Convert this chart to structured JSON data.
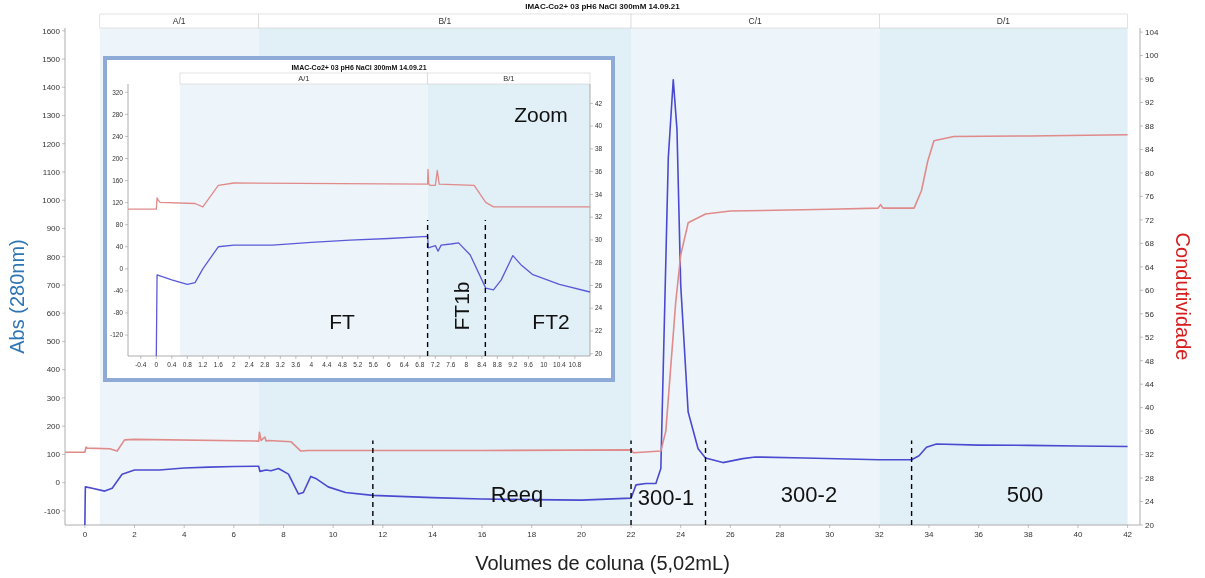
{
  "chart_data": [
    {
      "type": "line",
      "title": "IMAC-Co2+ 03 pH6 NaCl 300mM 14.09.21",
      "xlabel": "Volumes de coluna (5,02mL)",
      "ylabel": "Abs (280nm)",
      "y2label": "Condutividade",
      "xlim": [
        -0.8,
        42.5
      ],
      "xticks": [
        0,
        2,
        4,
        6,
        8,
        10,
        12,
        14,
        16,
        18,
        20,
        22,
        24,
        26,
        28,
        30,
        32,
        34,
        36,
        38,
        40,
        42
      ],
      "ylim": [
        -150,
        1610
      ],
      "yticks": [
        -100,
        0,
        100,
        200,
        300,
        400,
        500,
        600,
        700,
        800,
        900,
        1000,
        1100,
        1200,
        1300,
        1400,
        1500,
        1600
      ],
      "y2lim": [
        20,
        104.7
      ],
      "y2ticks": [
        20,
        24,
        28,
        32,
        36,
        40,
        44,
        48,
        52,
        56,
        60,
        64,
        68,
        72,
        76,
        80,
        84,
        88,
        92,
        96,
        100,
        104
      ],
      "series": [
        {
          "color": "#4a4ad0",
          "x": [
            0,
            0.02,
            0.3,
            0.8,
            1.1,
            1.5,
            2,
            3,
            4,
            5,
            6,
            7,
            7.05,
            7.3,
            7.5,
            7.8,
            8.2,
            8.6,
            8.8,
            9.1,
            9.3,
            9.8,
            10.5,
            11.6,
            14,
            16,
            18,
            20,
            22,
            22.2,
            22.6,
            23.0,
            23.2,
            23.35,
            23.5,
            23.7,
            23.85,
            24,
            24.3,
            24.7,
            25,
            25.7,
            26.5,
            27,
            29,
            32,
            33.3,
            33.6,
            33.9,
            34.3,
            36,
            38,
            40,
            42
          ],
          "values": [
            -150,
            -15,
            -20,
            -30,
            -20,
            30,
            45,
            45,
            52,
            55,
            57,
            58,
            40,
            45,
            42,
            50,
            30,
            -40,
            -35,
            22,
            15,
            -15,
            -35,
            -45,
            -53,
            -58,
            -60,
            -62,
            -55,
            -8,
            -3,
            -3,
            50,
            600,
            1150,
            1427,
            1250,
            700,
            250,
            120,
            87,
            71,
            85,
            91,
            87,
            81,
            81,
            95,
            125,
            137,
            133,
            132,
            130,
            128
          ]
        },
        {
          "color": "#e08a8a",
          "axis": "y2",
          "x": [
            -0.8,
            0,
            0.05,
            0.1,
            1.0,
            1.3,
            1.6,
            2,
            7,
            7.03,
            7.1,
            7.25,
            7.3,
            7.4,
            8.3,
            8.7,
            9,
            12,
            16,
            22,
            22.1,
            23.2,
            23.4,
            23.6,
            23.8,
            24,
            24.3,
            25,
            26,
            30,
            31.95,
            32.05,
            32.15,
            33.4,
            33.7,
            33.95,
            34.2,
            35,
            38,
            42
          ],
          "values": [
            32.4,
            32.4,
            33.3,
            33.1,
            33.0,
            32.6,
            34.5,
            34.6,
            34.3,
            35.8,
            34.4,
            35.0,
            34.3,
            34.4,
            34.2,
            32.6,
            32.7,
            32.7,
            32.7,
            32.8,
            32.3,
            32.6,
            36,
            47,
            58,
            66,
            71.5,
            73,
            73.5,
            73.8,
            74,
            74.6,
            74,
            74,
            77,
            82,
            85.5,
            86.2,
            86.3,
            86.5
          ]
        }
      ],
      "bands": [
        {
          "axis": "x",
          "from": 0.6,
          "to": 7,
          "label": "A/1",
          "color": "#eef5fa"
        },
        {
          "axis": "x",
          "from": 7,
          "to": 22,
          "label": "B/1",
          "color": "#e1eff6"
        },
        {
          "axis": "x",
          "from": 22,
          "to": 32,
          "label": "C/1",
          "color": "#eef5fa"
        },
        {
          "axis": "x",
          "from": 32,
          "to": 42,
          "label": "D/1",
          "color": "#e1eff6"
        }
      ],
      "ref_lines": [
        {
          "axis": "x",
          "value": 11.6,
          "line_style": "dashed",
          "color": "#000000"
        },
        {
          "axis": "x",
          "value": 22,
          "line_style": "dashed",
          "color": "#000000"
        },
        {
          "axis": "x",
          "value": 25,
          "line_style": "dashed",
          "color": "#000000"
        },
        {
          "axis": "x",
          "value": 33.3,
          "line_style": "dashed",
          "color": "#000000"
        }
      ],
      "annotations": [
        "Reeq",
        "300-1",
        "300-2",
        "500"
      ]
    },
    {
      "type": "line",
      "title": "IMAC-Co2+ 03 pH6 NaCl 300mM 14.09.21",
      "xlim": [
        -0.73,
        11.19
      ],
      "xticks": [
        -0.4,
        0,
        0.4,
        0.8,
        1.2,
        1.6,
        2,
        2.4,
        2.8,
        3.2,
        3.6,
        4,
        4.4,
        4.8,
        5.2,
        5.6,
        6,
        6.4,
        6.8,
        7.2,
        7.6,
        8,
        8.4,
        8.8,
        9.2,
        9.6,
        10,
        10.4,
        10.8
      ],
      "ylim": [
        -158,
        335
      ],
      "yticks": [
        -120,
        -80,
        -40,
        0,
        40,
        80,
        120,
        160,
        200,
        240,
        280,
        320
      ],
      "y2lim": [
        19.8,
        43.7
      ],
      "y2ticks": [
        20,
        22,
        24,
        26,
        28,
        30,
        32,
        34,
        36,
        38,
        40,
        42
      ],
      "series": [
        {
          "color": "#5a5ad8",
          "x": [
            0,
            0.02,
            0.4,
            0.8,
            1.0,
            1.2,
            1.6,
            2,
            3,
            4,
            5,
            6,
            7,
            7.02,
            7.2,
            7.27,
            7.35,
            7.6,
            7.8,
            8.1,
            8.5,
            8.7,
            8.9,
            9.2,
            9.4,
            9.7,
            10.4,
            11.19
          ],
          "values": [
            -158,
            -11,
            -20,
            -28,
            -25,
            0,
            40,
            43,
            43,
            48,
            52,
            55,
            59,
            38,
            42,
            32,
            43,
            45,
            47,
            25,
            -35,
            -38,
            -20,
            24,
            8,
            -10,
            -28,
            -42
          ]
        },
        {
          "color": "#e08a8a",
          "axis": "y2",
          "x": [
            -0.73,
            0,
            0.02,
            0.05,
            0.1,
            1.0,
            1.2,
            1.6,
            2,
            7,
            7.01,
            7.03,
            7.06,
            7.2,
            7.25,
            7.3,
            8.2,
            8.5,
            8.7,
            11.19
          ],
          "values": [
            32.7,
            32.7,
            33.7,
            33.5,
            33.3,
            33.2,
            32.9,
            34.8,
            35,
            34.9,
            36.2,
            34.9,
            34.8,
            34.8,
            36.1,
            34.9,
            34.8,
            33.3,
            32.9,
            32.9
          ]
        }
      ],
      "bands": [
        {
          "axis": "x",
          "from": 0.61,
          "to": 7,
          "label": "A/1",
          "color": "#eef5fa"
        },
        {
          "axis": "x",
          "from": 7,
          "to": 11.19,
          "label": "B/1",
          "color": "#e1eff6"
        }
      ],
      "ref_lines": [
        {
          "axis": "x",
          "value": 7,
          "line_style": "dashed",
          "color": "#000000"
        },
        {
          "axis": "x",
          "value": 8.49,
          "line_style": "dashed",
          "color": "#000000"
        }
      ],
      "annotations": [
        "Zoom",
        "FT",
        "FT1b",
        "FT2"
      ]
    }
  ]
}
